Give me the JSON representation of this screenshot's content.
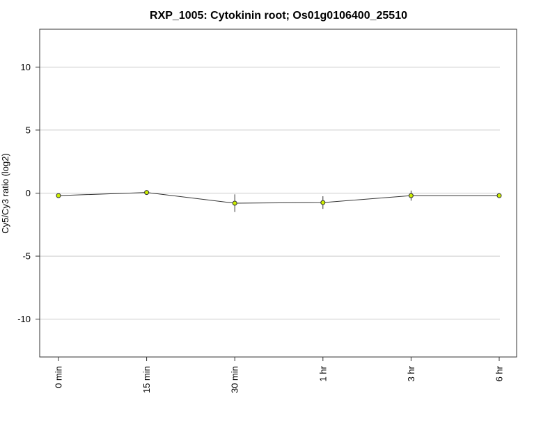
{
  "chart_data": {
    "type": "line",
    "title": "RXP_1005: Cytokinin root; Os01g0106400_25510",
    "xlabel": "",
    "ylabel": "Cy5/Cy3 ratio (log2)",
    "categories": [
      "0 min",
      "15 min",
      "30 min",
      "1 hr",
      "3 hr",
      "6 hr"
    ],
    "series": [
      {
        "values": [
          -0.2,
          0.05,
          -0.8,
          -0.75,
          -0.2,
          -0.2
        ],
        "error": [
          0.05,
          0.05,
          0.7,
          0.5,
          0.4,
          0.1
        ]
      }
    ],
    "ylim": [
      -13,
      13
    ],
    "yticks": [
      -10,
      -5,
      0,
      5,
      10
    ],
    "ytick_labels": [
      "-10",
      "-5",
      "0",
      "5",
      "10"
    ],
    "grid": true,
    "colors": {
      "marker_fill": "#ccee00",
      "marker_stroke": "#333333",
      "line": "#333333",
      "grid": "#cccccc",
      "frame": "#333333"
    }
  }
}
